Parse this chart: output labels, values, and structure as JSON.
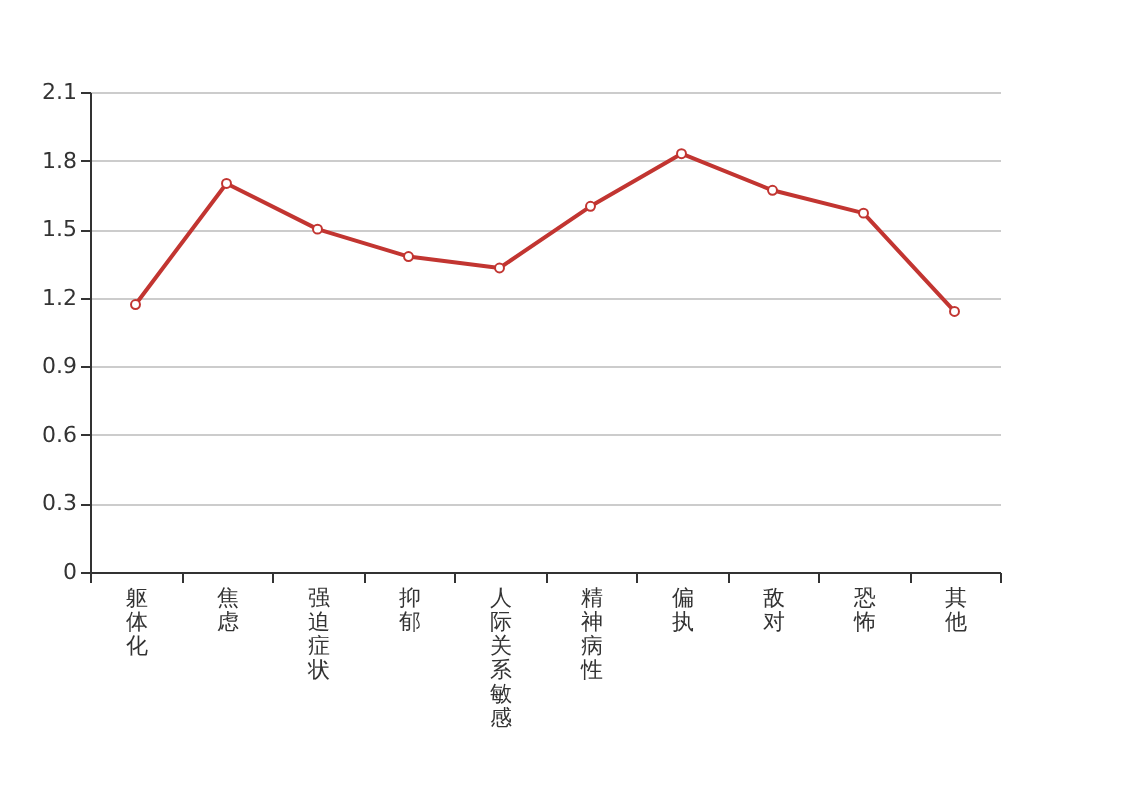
{
  "chart_data": {
    "type": "line",
    "categories": [
      "躯体化",
      "焦虑",
      "强迫症状",
      "抑郁",
      "人际关系敏感",
      "精神病性",
      "偏执",
      "敌对",
      "恐怖",
      "其他"
    ],
    "series": [
      {
        "color": "#c23531",
        "values": [
          1.17,
          1.7,
          1.5,
          1.38,
          1.33,
          1.6,
          1.83,
          1.67,
          1.57,
          1.14
        ]
      }
    ],
    "ylim": [
      0,
      2.1
    ],
    "yticks": [
      0,
      0.3,
      0.6,
      0.9,
      1.2,
      1.5,
      1.8,
      2.1
    ],
    "grid": "y",
    "marker": "circle",
    "line_style": "solid"
  }
}
